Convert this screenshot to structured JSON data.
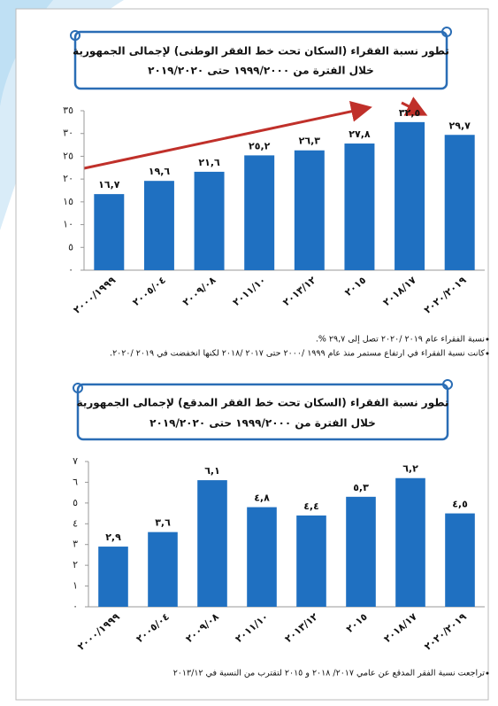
{
  "chart_data": [
    {
      "type": "bar",
      "title": "تطور نسبة الفقراء (السكان تحت خط الفقر الوطنى) لإجمالى الجمهورية",
      "subtitle": "خلال الفترة من ١٩٩٩/٢٠٠٠ حتى ٢٠١٩/٢٠٢٠",
      "categories": [
        "٢٠٠٠/١٩٩٩",
        "٢٠٠٥/٠٤",
        "٢٠٠٩/٠٨",
        "٢٠١١/١٠",
        "٢٠١٣/١٢",
        "٢٠١٥",
        "٢٠١٨/١٧",
        "٢٠٢٠/٢٠١٩"
      ],
      "values": [
        16.7,
        19.6,
        21.6,
        25.2,
        26.3,
        27.8,
        32.5,
        29.7
      ],
      "value_labels": [
        "١٦,٧",
        "١٩,٦",
        "٢١,٦",
        "٢٥,٢",
        "٢٦,٣",
        "٢٧,٨",
        "٣٢,٥",
        "٢٩,٧"
      ],
      "color": "#1f70c1",
      "ylim": [
        0,
        35
      ],
      "yticks": [
        {
          "value": 0,
          "label": "٠"
        },
        {
          "value": 5,
          "label": "٥"
        },
        {
          "value": 10,
          "label": "١٠"
        },
        {
          "value": 15,
          "label": "١٥"
        },
        {
          "value": 20,
          "label": "٢٠"
        },
        {
          "value": 25,
          "label": "٢٥"
        },
        {
          "value": 30,
          "label": "٣٠"
        },
        {
          "value": 35,
          "label": "٣٥"
        }
      ],
      "notes": [
        "نسبة الفقراء عام ٢٠١٩ /٢٠٢٠ تصل إلى ٢٩,٧ %.",
        "كانت نسبة الفقراء في ارتفاع مستمر منذ عام ١٩٩٩ /٢٠٠٠ حتى ٢٠١٧ /٢٠١٨ لكنها انخفضت في ٢٠١٩ /٢٠٢٠."
      ]
    },
    {
      "type": "bar",
      "title": "تطور نسبة الفقراء (السكان تحت خط الفقر المدقع) لإجمالى الجمهورية",
      "subtitle": "خلال الفترة من ١٩٩٩/٢٠٠٠ حتى ٢٠١٩/٢٠٢٠",
      "categories": [
        "٢٠٠٠/١٩٩٩",
        "٢٠٠٥/٠٤",
        "٢٠٠٩/٠٨",
        "٢٠١١/١٠",
        "٢٠١٣/١٢",
        "٢٠١٥",
        "٢٠١٨/١٧",
        "٢٠٢٠/٢٠١٩"
      ],
      "values": [
        2.9,
        3.6,
        6.1,
        4.8,
        4.4,
        5.3,
        6.2,
        4.5
      ],
      "value_labels": [
        "٢,٩",
        "٣,٦",
        "٦,١",
        "٤,٨",
        "٤,٤",
        "٥,٣",
        "٦,٢",
        "٤,٥"
      ],
      "color": "#1f70c1",
      "ylim": [
        0,
        7
      ],
      "yticks": [
        {
          "value": 0,
          "label": "٠"
        },
        {
          "value": 1,
          "label": "١"
        },
        {
          "value": 2,
          "label": "٢"
        },
        {
          "value": 3,
          "label": "٣"
        },
        {
          "value": 4,
          "label": "٤"
        },
        {
          "value": 5,
          "label": "٥"
        },
        {
          "value": 6,
          "label": "٦"
        },
        {
          "value": 7,
          "label": "٧"
        }
      ],
      "notes": [
        "تراجعت نسبة الفقر المدقع عن عامي ٢٠١٧/ ٢٠١٨ و ٢٠١٥ لتقترب من النسبة في ٢٠١٣/١٢"
      ]
    }
  ]
}
